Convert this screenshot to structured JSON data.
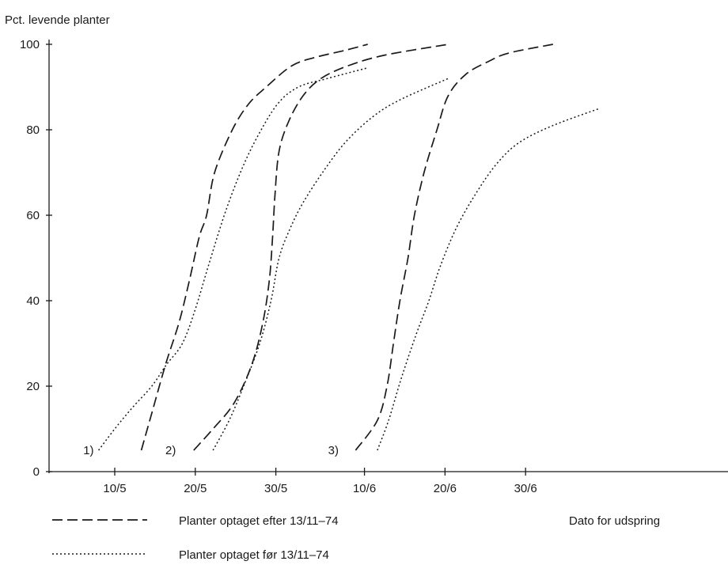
{
  "chart_data": {
    "type": "line",
    "ylabel": "Pct. levende planter",
    "xlabel": "Dato for udspring",
    "x_ticks": [
      "10/5",
      "20/5",
      "30/5",
      "10/6",
      "20/6",
      "30/6"
    ],
    "x_tick_days": [
      10,
      20,
      30,
      41,
      51,
      61
    ],
    "xlim_days": [
      1,
      68
    ],
    "y_ticks": [
      "0",
      "20",
      "40",
      "60",
      "80",
      "100"
    ],
    "y_tick_values": [
      0,
      20,
      40,
      60,
      80,
      100
    ],
    "ylim": [
      0,
      100
    ],
    "legend": {
      "position": "bottom",
      "entries": [
        {
          "style": "dashed",
          "label": "Planter optaget efter 13/11–74"
        },
        {
          "style": "dotted",
          "label": "Planter optaget før 13/11–74"
        }
      ]
    },
    "group_labels": [
      {
        "label": "1)",
        "x": 7.4,
        "y": 5
      },
      {
        "label": "2)",
        "x": 17.6,
        "y": 5
      },
      {
        "label": "3)",
        "x": 37.8,
        "y": 5
      }
    ],
    "series": [
      {
        "group": "1)",
        "style": "dashed",
        "points": [
          [
            13.3,
            5
          ],
          [
            14.5,
            13
          ],
          [
            16.3,
            25
          ],
          [
            18,
            35
          ],
          [
            19.3,
            45
          ],
          [
            20.5,
            55
          ],
          [
            21.4,
            60
          ],
          [
            22.4,
            70
          ],
          [
            24.6,
            80
          ],
          [
            26.6,
            86
          ],
          [
            28.8,
            90
          ],
          [
            32,
            95
          ],
          [
            35,
            97
          ],
          [
            38.4,
            98.5
          ],
          [
            41.4,
            100
          ]
        ]
      },
      {
        "group": "1)",
        "style": "dotted",
        "points": [
          [
            8,
            5
          ],
          [
            10,
            10
          ],
          [
            12.2,
            15
          ],
          [
            14.6,
            20
          ],
          [
            16.4,
            25
          ],
          [
            18.4,
            30
          ],
          [
            20,
            38
          ],
          [
            21.6,
            48
          ],
          [
            23.6,
            60
          ],
          [
            25.6,
            70
          ],
          [
            27.6,
            78
          ],
          [
            30.2,
            86
          ],
          [
            32.8,
            90
          ],
          [
            36.4,
            92
          ],
          [
            41.4,
            94.5
          ]
        ]
      },
      {
        "group": "2)",
        "style": "dashed",
        "points": [
          [
            19.8,
            5
          ],
          [
            22.2,
            10
          ],
          [
            24.8,
            16
          ],
          [
            27,
            25
          ],
          [
            28.4,
            35
          ],
          [
            29.2,
            45
          ],
          [
            29.6,
            55
          ],
          [
            29.9,
            65
          ],
          [
            30.4,
            75
          ],
          [
            31.6,
            82
          ],
          [
            33.4,
            88
          ],
          [
            35.6,
            92
          ],
          [
            39,
            95
          ],
          [
            43.6,
            97.5
          ],
          [
            51.4,
            100
          ]
        ]
      },
      {
        "group": "2)",
        "style": "dotted",
        "points": [
          [
            22.2,
            5
          ],
          [
            24.2,
            12
          ],
          [
            26,
            20
          ],
          [
            28,
            30
          ],
          [
            29.4,
            40
          ],
          [
            30.4,
            50
          ],
          [
            31.8,
            57
          ],
          [
            33.4,
            63
          ],
          [
            35.8,
            70
          ],
          [
            38.6,
            77
          ],
          [
            42,
            83
          ],
          [
            45.4,
            87
          ],
          [
            51.4,
            92
          ]
        ]
      },
      {
        "group": "3)",
        "style": "dashed",
        "points": [
          [
            39.9,
            5
          ],
          [
            42.6,
            12
          ],
          [
            43.8,
            20
          ],
          [
            44.6,
            30
          ],
          [
            45.4,
            40
          ],
          [
            46.4,
            50
          ],
          [
            47.2,
            60
          ],
          [
            48.4,
            70
          ],
          [
            50,
            80
          ],
          [
            51.4,
            88
          ],
          [
            53.6,
            93
          ],
          [
            56.4,
            96
          ],
          [
            59,
            98
          ],
          [
            64.4,
            100
          ]
        ]
      },
      {
        "group": "3)",
        "style": "dotted",
        "points": [
          [
            42.6,
            5
          ],
          [
            44,
            12
          ],
          [
            45.6,
            22
          ],
          [
            47.4,
            32
          ],
          [
            49,
            40
          ],
          [
            50.4,
            48
          ],
          [
            52.4,
            57
          ],
          [
            54.8,
            65
          ],
          [
            57.4,
            72
          ],
          [
            60.2,
            77
          ],
          [
            64.4,
            81
          ],
          [
            70.2,
            85
          ]
        ]
      }
    ]
  }
}
